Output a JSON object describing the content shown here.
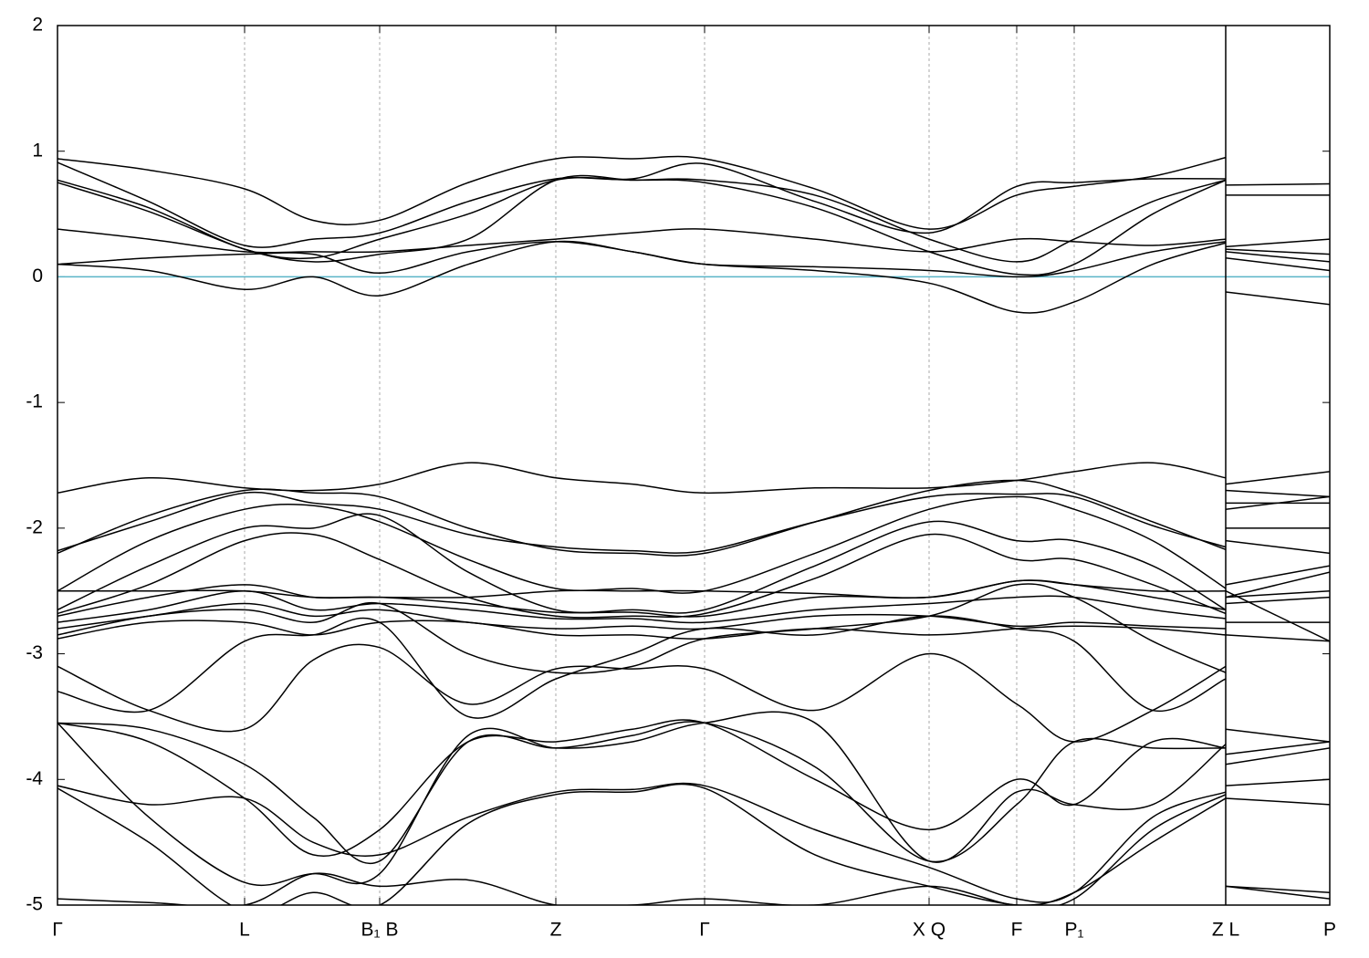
{
  "chart_data": {
    "type": "line",
    "x": [
      0,
      1.0,
      2.05,
      2.8,
      3.53,
      4.5,
      5.46,
      6.3,
      7.09,
      8.3,
      9.55,
      10.51,
      11.14,
      12.0,
      12.8,
      12.8,
      12.8,
      13.94
    ],
    "xlim": [
      0,
      13.94
    ],
    "ylim": [
      -5,
      2
    ],
    "yticks": [
      -5,
      -4,
      -3,
      -2,
      -1,
      0,
      1,
      2
    ],
    "xticks": [
      {
        "value": 0,
        "label": "Γ"
      },
      {
        "value": 2.05,
        "label": "L"
      },
      {
        "value": 3.53,
        "label": "B₁ B"
      },
      {
        "value": 5.46,
        "label": "Z"
      },
      {
        "value": 7.09,
        "label": "Γ"
      },
      {
        "value": 9.55,
        "label": "X Q"
      },
      {
        "value": 10.51,
        "label": "F"
      },
      {
        "value": 11.14,
        "label": "P₁"
      },
      {
        "value": 12.8,
        "label": "Z L"
      },
      {
        "value": 13.94,
        "label": "P"
      }
    ],
    "xgrid": true,
    "line_color": "#000000",
    "hline": 0,
    "hline_color": "#5ab4c8",
    "series": [
      {
        "values": [
          0.94,
          0.85,
          0.7,
          0.45,
          0.45,
          0.75,
          0.94,
          0.94,
          0.94,
          0.7,
          0.38,
          0.65,
          0.72,
          0.8,
          0.95,
          null,
          0.73,
          0.74
        ]
      },
      {
        "values": [
          0.91,
          0.6,
          0.25,
          0.3,
          0.35,
          0.6,
          0.78,
          0.78,
          0.9,
          0.6,
          0.35,
          0.72,
          0.75,
          0.78,
          0.78,
          null,
          0.65,
          0.65
        ]
      },
      {
        "values": [
          0.77,
          0.55,
          0.22,
          0.15,
          0.3,
          0.5,
          0.77,
          0.77,
          0.77,
          0.65,
          0.3,
          0.12,
          0.3,
          0.6,
          0.77,
          null,
          0.24,
          0.3
        ]
      },
      {
        "values": [
          0.75,
          0.52,
          0.22,
          0.12,
          0.18,
          0.3,
          0.77,
          0.77,
          0.75,
          0.55,
          0.2,
          0.02,
          0.1,
          0.5,
          0.77,
          null,
          0.22,
          0.18
        ]
      },
      {
        "values": [
          0.38,
          0.3,
          0.2,
          0.2,
          0.2,
          0.25,
          0.3,
          0.35,
          0.38,
          0.3,
          0.2,
          0.3,
          0.28,
          0.25,
          0.3,
          null,
          0.2,
          0.12
        ]
      },
      {
        "values": [
          0.1,
          0.15,
          0.18,
          0.18,
          0.03,
          0.2,
          0.28,
          0.2,
          0.1,
          0.08,
          0.05,
          0.0,
          0.05,
          0.2,
          0.28,
          null,
          0.15,
          0.05
        ]
      },
      {
        "values": [
          0.1,
          0.05,
          -0.1,
          0.0,
          -0.15,
          0.1,
          0.28,
          0.2,
          0.1,
          0.05,
          -0.05,
          -0.28,
          -0.2,
          0.1,
          0.27,
          null,
          -0.12,
          -0.22
        ]
      },
      {
        "values": [
          -1.72,
          -1.6,
          -1.68,
          -1.7,
          -1.65,
          -1.48,
          -1.6,
          -1.65,
          -1.72,
          -1.68,
          -1.68,
          -1.62,
          -1.55,
          -1.48,
          -1.6,
          null,
          -1.65,
          -1.55
        ]
      },
      {
        "values": [
          -2.2,
          -1.9,
          -1.7,
          -1.72,
          -1.75,
          -2.0,
          -2.17,
          -2.2,
          -2.2,
          -1.95,
          -1.7,
          -1.62,
          -1.72,
          -1.95,
          -2.17,
          null,
          -1.7,
          -1.75
        ]
      },
      {
        "values": [
          -2.18,
          -1.95,
          -1.72,
          -1.8,
          -1.85,
          -2.05,
          -2.15,
          -2.18,
          -2.18,
          -1.95,
          -1.75,
          -1.73,
          -1.75,
          -1.98,
          -2.15,
          null,
          -1.85,
          -1.75
        ]
      },
      {
        "values": [
          -2.5,
          -2.1,
          -1.85,
          -1.82,
          -1.95,
          -2.25,
          -2.48,
          -2.48,
          -2.5,
          -2.2,
          -1.85,
          -1.75,
          -1.85,
          -2.1,
          -2.48,
          null,
          -1.8,
          -1.8
        ]
      },
      {
        "values": [
          -2.65,
          -2.3,
          -2.0,
          -2.0,
          -1.9,
          -2.35,
          -2.65,
          -2.65,
          -2.65,
          -2.3,
          -1.95,
          -2.1,
          -2.1,
          -2.3,
          -2.65,
          null,
          -2.0,
          -2.0
        ]
      },
      {
        "values": [
          -2.68,
          -2.45,
          -2.1,
          -2.05,
          -2.25,
          -2.55,
          -2.7,
          -2.7,
          -2.68,
          -2.4,
          -2.05,
          -2.25,
          -2.25,
          -2.45,
          -2.68,
          null,
          -2.1,
          -2.2
        ]
      },
      {
        "values": [
          -2.5,
          -2.5,
          -2.5,
          -2.55,
          -2.55,
          -2.55,
          -2.5,
          -2.5,
          -2.5,
          -2.52,
          -2.55,
          -2.42,
          -2.45,
          -2.5,
          -2.5,
          null,
          -2.45,
          -2.3
        ]
      },
      {
        "values": [
          -2.7,
          -2.55,
          -2.45,
          -2.55,
          -2.55,
          -2.6,
          -2.67,
          -2.67,
          -2.7,
          -2.55,
          -2.55,
          -2.42,
          -2.45,
          -2.55,
          -2.65,
          null,
          -2.55,
          -2.35
        ]
      },
      {
        "values": [
          -2.75,
          -2.65,
          -2.5,
          -2.65,
          -2.6,
          -2.65,
          -2.72,
          -2.72,
          -2.75,
          -2.65,
          -2.6,
          -2.55,
          -2.55,
          -2.65,
          -2.72,
          null,
          -2.55,
          -2.5
        ]
      },
      {
        "values": [
          -2.8,
          -2.7,
          -2.6,
          -2.7,
          -2.65,
          -2.75,
          -2.8,
          -2.78,
          -2.8,
          -2.7,
          -2.7,
          -2.78,
          -2.75,
          -2.78,
          -2.8,
          null,
          -2.6,
          -2.55
        ]
      },
      {
        "values": [
          -2.88,
          -2.75,
          -2.75,
          -2.85,
          -2.75,
          -2.75,
          -2.85,
          -2.85,
          -2.88,
          -2.8,
          -2.85,
          -2.8,
          -2.78,
          -2.8,
          -2.85,
          null,
          -2.75,
          -2.75
        ]
      },
      {
        "values": [
          -2.85,
          -2.7,
          -2.65,
          -2.75,
          -2.6,
          -3.0,
          -3.15,
          -3.1,
          -2.88,
          -2.8,
          -2.7,
          -2.45,
          -2.55,
          -2.9,
          -3.15,
          null,
          -2.5,
          -2.9
        ]
      },
      {
        "values": [
          -3.1,
          -3.45,
          -3.6,
          -3.05,
          -2.95,
          -3.4,
          -3.12,
          -3.12,
          -3.12,
          -3.45,
          -3.0,
          -3.4,
          -3.7,
          -3.45,
          -3.1,
          null,
          -2.85,
          -2.9
        ]
      },
      {
        "values": [
          -3.3,
          -3.45,
          -2.9,
          -2.85,
          -2.75,
          -3.5,
          -3.2,
          -3.0,
          -2.8,
          -2.85,
          -2.7,
          -2.8,
          -2.9,
          -3.45,
          -3.2,
          null,
          -3.6,
          -3.7
        ]
      },
      {
        "values": [
          -3.55,
          -3.6,
          -3.88,
          -4.3,
          -4.65,
          -3.7,
          -3.75,
          -3.65,
          -3.55,
          -3.9,
          -4.65,
          -4.2,
          -3.7,
          -3.75,
          -3.75,
          null,
          -3.8,
          -3.7
        ]
      },
      {
        "values": [
          -3.55,
          -3.7,
          -4.15,
          -4.6,
          -4.4,
          -3.7,
          -3.7,
          -3.6,
          -3.55,
          -4.0,
          -4.4,
          -4.0,
          -4.2,
          -3.7,
          -3.75,
          null,
          -3.88,
          -3.75
        ]
      },
      {
        "values": [
          -3.55,
          -4.3,
          -4.82,
          -4.75,
          -4.75,
          -3.65,
          -3.75,
          -3.7,
          -3.55,
          -3.55,
          -4.65,
          -4.1,
          -4.2,
          -4.2,
          -3.72,
          null,
          -4.05,
          -4.0
        ]
      },
      {
        "values": [
          -4.05,
          -4.2,
          -4.15,
          -4.5,
          -4.6,
          -4.3,
          -4.1,
          -4.08,
          -4.05,
          -4.4,
          -4.7,
          -4.95,
          -4.9,
          -4.3,
          -4.1,
          null,
          -4.15,
          -4.2
        ]
      },
      {
        "values": [
          -4.07,
          -4.5,
          -5.05,
          -4.9,
          -5.0,
          -4.35,
          -4.12,
          -4.1,
          -4.07,
          -4.6,
          -4.85,
          -5.0,
          -4.95,
          -4.4,
          -4.12,
          null,
          -4.85,
          -4.9
        ]
      },
      {
        "values": [
          -4.95,
          -4.98,
          -5.0,
          -4.75,
          -4.85,
          -4.8,
          -5.0,
          -5.0,
          -4.95,
          -5.0,
          -4.85,
          -5.0,
          -4.9,
          -4.5,
          -4.15,
          null,
          -4.85,
          -4.95
        ]
      }
    ]
  }
}
